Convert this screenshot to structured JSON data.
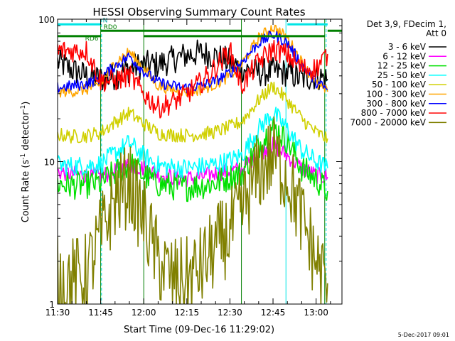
{
  "chart_data": {
    "type": "line",
    "title": "HESSI Observing Summary Count Rates",
    "xlabel": "Start Time (09-Dec-16 11:29:02)",
    "ylabel_parts": [
      "Count Rate (s",
      "-1",
      " detector",
      "-1",
      ")"
    ],
    "ylabel": "Count Rate (s-1 detector-1)",
    "yscale": "log",
    "ylim": [
      1,
      100
    ],
    "xlim_minutes": [
      0,
      99
    ],
    "x_ticks": [
      "11:30",
      "11:45",
      "12:00",
      "12:15",
      "12:30",
      "12:45",
      "13:00"
    ],
    "x_tick_minutes": [
      0,
      15,
      30,
      45,
      60,
      75,
      90
    ],
    "y_ticks": [
      "1",
      "10",
      "100"
    ],
    "y_tick_values": [
      1,
      10,
      100
    ],
    "legend_title": [
      "Det 3,9, FDecim 1,",
      "Att 0"
    ],
    "legend_position": "right",
    "timestamp": "5-Dec-2017 09:01",
    "bar_labels": {
      "rd0": "RD0",
      "rd6": "RD6",
      "n": "N"
    },
    "state_bars": [
      {
        "kind": "N",
        "color": "#00e5e5",
        "level": 92,
        "segments": [
          [
            0,
            15
          ],
          [
            80,
            94
          ]
        ]
      },
      {
        "kind": "RD0",
        "color": "#008000",
        "level": 83,
        "segments": [
          [
            15,
            64
          ]
        ]
      },
      {
        "kind": "RD6",
        "color": "#008000",
        "level": 76,
        "segments": [
          [
            0,
            15
          ],
          [
            30,
            64
          ],
          [
            64,
            93
          ]
        ]
      },
      {
        "kind": "RD0",
        "color": "#008000",
        "level": 83,
        "segments": [
          [
            94,
            99
          ]
        ]
      }
    ],
    "vertical_markers": [
      {
        "minute": 0,
        "color": "#00e5e5",
        "style": "solid"
      },
      {
        "minute": 15.3,
        "color": "#00e5e5",
        "style": "dashed"
      },
      {
        "minute": 79.5,
        "color": "#00e5e5",
        "style": "solid"
      },
      {
        "minute": 93.5,
        "color": "#00e5e5",
        "style": "dashed"
      },
      {
        "minute": 15.0,
        "color": "#008000",
        "style": "solid"
      },
      {
        "minute": 30.0,
        "color": "#008000",
        "style": "solid"
      },
      {
        "minute": 64.0,
        "color": "#008000",
        "style": "solid"
      },
      {
        "minute": 93.0,
        "color": "#008000",
        "style": "solid"
      }
    ],
    "series": [
      {
        "name": "3 - 6 keV",
        "color": "#000000",
        "x": [
          0,
          5,
          10,
          15,
          20,
          25,
          30,
          35,
          40,
          45,
          50,
          55,
          60,
          64,
          70,
          75,
          80,
          85,
          90,
          94
        ],
        "y": [
          50,
          44,
          40,
          38,
          40,
          45,
          48,
          48,
          52,
          56,
          58,
          55,
          50,
          45,
          42,
          43,
          42,
          38,
          40,
          38
        ]
      },
      {
        "name": "6 - 12 keV",
        "color": "#ff00ff",
        "x": [
          0,
          5,
          10,
          15,
          20,
          25,
          30,
          35,
          40,
          45,
          50,
          55,
          60,
          64,
          70,
          75,
          80,
          85,
          90,
          94
        ],
        "y": [
          8.5,
          8.2,
          8.0,
          7.9,
          8.6,
          9.5,
          9.0,
          8.2,
          7.8,
          7.6,
          7.8,
          8.3,
          8.6,
          8.8,
          11.5,
          13.0,
          11.0,
          9.0,
          8.0,
          7.8
        ]
      },
      {
        "name": "12 - 25 keV",
        "color": "#00e000",
        "x": [
          0,
          5,
          10,
          15,
          20,
          25,
          30,
          35,
          40,
          45,
          50,
          55,
          60,
          64,
          70,
          75,
          80,
          85,
          90,
          94
        ],
        "y": [
          7.0,
          6.8,
          6.9,
          7.1,
          8.3,
          9.6,
          8.0,
          7.0,
          6.7,
          6.6,
          6.8,
          7.1,
          7.8,
          8.2,
          13.0,
          17.5,
          14.0,
          9.0,
          7.5,
          6.2
        ]
      },
      {
        "name": "25 - 50 keV",
        "color": "#00ffff",
        "x": [
          0,
          5,
          10,
          15,
          20,
          25,
          30,
          35,
          40,
          45,
          50,
          55,
          60,
          64,
          70,
          75,
          80,
          85,
          90,
          94
        ],
        "y": [
          9.5,
          9.3,
          9.4,
          9.6,
          11.5,
          13.5,
          11.0,
          9.4,
          9.1,
          9.0,
          9.2,
          9.6,
          10.2,
          11.0,
          17.0,
          22.0,
          17.0,
          12.0,
          10.0,
          9.0
        ]
      },
      {
        "name": "50 - 100 keV",
        "color": "#d0d000",
        "x": [
          0,
          5,
          10,
          15,
          20,
          25,
          30,
          35,
          40,
          45,
          50,
          55,
          60,
          64,
          70,
          75,
          80,
          85,
          90,
          94
        ],
        "y": [
          15.5,
          15.0,
          15.2,
          16.0,
          19.0,
          22.0,
          18.5,
          15.8,
          15.4,
          15.3,
          15.6,
          16.2,
          17.5,
          19.0,
          27.0,
          34.0,
          27.0,
          20.0,
          16.0,
          14.5
        ]
      },
      {
        "name": "100 - 300 keV",
        "color": "#ffa500",
        "x": [
          0,
          5,
          10,
          15,
          20,
          25,
          30,
          35,
          40,
          45,
          50,
          55,
          60,
          64,
          70,
          75,
          80,
          85,
          90,
          94
        ],
        "y": [
          31,
          31,
          32,
          35,
          50,
          59,
          45,
          34,
          32,
          31,
          32,
          35,
          40,
          48,
          74,
          88,
          74,
          50,
          35,
          31
        ]
      },
      {
        "name": "300 - 800 keV",
        "color": "#0000ff",
        "x": [
          0,
          5,
          10,
          15,
          20,
          25,
          30,
          35,
          40,
          45,
          50,
          55,
          60,
          64,
          70,
          75,
          80,
          85,
          90,
          94
        ],
        "y": [
          33,
          34,
          35,
          39,
          47,
          55,
          43,
          36,
          34,
          33,
          34,
          37,
          42,
          50,
          68,
          78,
          68,
          48,
          36,
          32
        ]
      },
      {
        "name": "800 - 7000 keV",
        "color": "#ff0000",
        "x": [
          0,
          5,
          10,
          15,
          20,
          25,
          30,
          35,
          40,
          45,
          50,
          55,
          60,
          64,
          70,
          75,
          80,
          85,
          90,
          94
        ],
        "y": [
          60,
          60,
          60,
          37,
          37,
          40,
          30,
          24,
          26,
          30,
          36,
          46,
          60,
          34,
          50,
          62,
          56,
          45,
          45,
          57
        ]
      },
      {
        "name": "7000 - 20000 keV",
        "color": "#808000",
        "x": [
          0,
          5,
          10,
          15,
          20,
          25,
          30,
          35,
          40,
          45,
          50,
          55,
          60,
          64,
          70,
          75,
          80,
          85,
          90,
          94
        ],
        "y": [
          1.5,
          1.5,
          1.6,
          3.0,
          5.5,
          7.0,
          4.0,
          2.0,
          1.5,
          1.5,
          1.8,
          2.5,
          3.2,
          4.5,
          8.5,
          11.0,
          8.0,
          4.0,
          2.0,
          1.4
        ]
      }
    ]
  }
}
